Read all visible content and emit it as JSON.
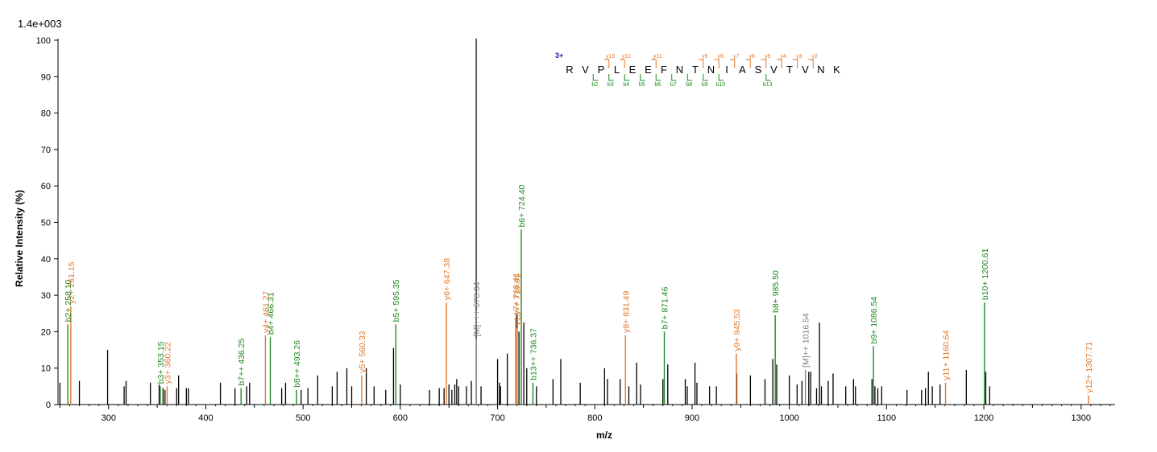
{
  "scale_label": "1.4e+003",
  "peptide": {
    "charge": "3+",
    "sequence": [
      "R",
      "V",
      "P",
      "L",
      "E",
      "E",
      "F",
      "N",
      "T",
      "N",
      "I",
      "A",
      "S",
      "V",
      "T",
      "V",
      "N",
      "K"
    ],
    "y_ions": [
      {
        "label": "y15",
        "after": 3
      },
      {
        "label": "y12",
        "after": 4
      },
      {
        "label": "y11",
        "after": 6
      },
      {
        "label": "y9",
        "after": 9
      },
      {
        "label": "y8",
        "after": 10
      },
      {
        "label": "y7",
        "after": 11
      },
      {
        "label": "y6",
        "after": 12
      },
      {
        "label": "y5",
        "after": 13
      },
      {
        "label": "y4",
        "after": 14
      },
      {
        "label": "y3",
        "after": 15
      },
      {
        "label": "y2",
        "after": 16
      }
    ],
    "b_ions": [
      {
        "label": "b2",
        "after": 2
      },
      {
        "label": "b3",
        "after": 3
      },
      {
        "label": "b4",
        "after": 4
      },
      {
        "label": "b5",
        "after": 5
      },
      {
        "label": "b6",
        "after": 6
      },
      {
        "label": "b7",
        "after": 7
      },
      {
        "label": "b8",
        "after": 8
      },
      {
        "label": "b9",
        "after": 9
      },
      {
        "label": "b10",
        "after": 10
      },
      {
        "label": "b13",
        "after": 13
      }
    ]
  },
  "colors": {
    "b": "#1f8a1f",
    "y": "#e07a30",
    "m": "#808080",
    "other": "#000000"
  },
  "chart_data": {
    "type": "bar",
    "subtype": "mass-spectrum-sticks",
    "xlabel": "m/z",
    "ylabel": "Relative   Intensity (%)",
    "xlim": [
      248,
      1335
    ],
    "ylim": [
      0,
      100
    ],
    "xticks": [
      300,
      400,
      500,
      600,
      700,
      800,
      900,
      1000,
      1100,
      1200,
      1300
    ],
    "yticks": [
      0,
      10,
      20,
      30,
      40,
      50,
      60,
      70,
      80,
      90,
      100
    ],
    "grid": false,
    "annotated_peaks": [
      {
        "mz": 258.1,
        "rel": 22,
        "kind": "b",
        "label": "b2+ 258.10",
        "visible": "b2+ 2"
      },
      {
        "mz": 261.15,
        "rel": 27,
        "kind": "y",
        "label": "y2+ 261.15"
      },
      {
        "mz": 353.15,
        "rel": 5,
        "kind": "b",
        "label": "b3+ 353.15"
      },
      {
        "mz": 360.22,
        "rel": 5,
        "kind": "y",
        "label": "y3+ 360.22"
      },
      {
        "mz": 436.25,
        "rel": 4.5,
        "kind": "b",
        "label": "b7++ 436.25"
      },
      {
        "mz": 461.27,
        "rel": 19,
        "kind": "y",
        "label": "y4+ 461.27",
        "visible": "y4+ 461.27"
      },
      {
        "mz": 466.31,
        "rel": 18.5,
        "kind": "b",
        "label": "b4+ 466.31"
      },
      {
        "mz": 493.26,
        "rel": 4,
        "kind": "b",
        "label": "b8++ 493.26"
      },
      {
        "mz": 560.33,
        "rel": 8,
        "kind": "y",
        "label": "y5+ 560.33"
      },
      {
        "mz": 595.35,
        "rel": 22,
        "kind": "b",
        "label": "b5+ 595.35"
      },
      {
        "mz": 647.38,
        "rel": 28,
        "kind": "y",
        "label": "y6+ 647.38"
      },
      {
        "mz": 678.04,
        "rel": 18,
        "kind": "m",
        "label": "[M]+++ 678.04"
      },
      {
        "mz": 718.41,
        "rel": 24,
        "kind": "y",
        "label": "y7+ 718.41"
      },
      {
        "mz": 719.91,
        "rel": 21,
        "kind": "y",
        "label": "y13++ 719.91"
      },
      {
        "mz": 724.4,
        "rel": 48,
        "kind": "b",
        "label": "b6+ 724.40"
      },
      {
        "mz": 736.37,
        "rel": 6,
        "kind": "b",
        "label": "b13++ 736.37"
      },
      {
        "mz": 831.49,
        "rel": 19,
        "kind": "y",
        "label": "y8+ 831.49"
      },
      {
        "mz": 871.46,
        "rel": 20,
        "kind": "b",
        "label": "b7+ 871.46"
      },
      {
        "mz": 945.53,
        "rel": 14,
        "kind": "y",
        "label": "y9+ 945.53"
      },
      {
        "mz": 985.5,
        "rel": 24.5,
        "kind": "b",
        "label": "b8+ 985.50"
      },
      {
        "mz": 1016.54,
        "rel": 9.5,
        "kind": "m",
        "label": "[M]++ 1016.54"
      },
      {
        "mz": 1086.54,
        "rel": 16,
        "kind": "b",
        "label": "b9+ 1086.54"
      },
      {
        "mz": 1160.64,
        "rel": 6,
        "kind": "y",
        "label": "y11+ 1160.64"
      },
      {
        "mz": 1200.61,
        "rel": 28,
        "kind": "b",
        "label": "b10+ 1200.61"
      },
      {
        "mz": 1307.71,
        "rel": 2.5,
        "kind": "y",
        "label": "y12+ 1307.71"
      }
    ],
    "other_peaks": [
      [
        250,
        6
      ],
      [
        270,
        6.5
      ],
      [
        299,
        15
      ],
      [
        316,
        5
      ],
      [
        318,
        6.5
      ],
      [
        343,
        6
      ],
      [
        352,
        5.5
      ],
      [
        356,
        4.5
      ],
      [
        358,
        4
      ],
      [
        370,
        4.5
      ],
      [
        372,
        8
      ],
      [
        380,
        4.5
      ],
      [
        382,
        4.5
      ],
      [
        415,
        6
      ],
      [
        430,
        4.5
      ],
      [
        442,
        5
      ],
      [
        445,
        6
      ],
      [
        478,
        4.5
      ],
      [
        482,
        6
      ],
      [
        498,
        4
      ],
      [
        505,
        4.5
      ],
      [
        515,
        8
      ],
      [
        530,
        5
      ],
      [
        535,
        9
      ],
      [
        545,
        10
      ],
      [
        550,
        5
      ],
      [
        565,
        10
      ],
      [
        573,
        5
      ],
      [
        585,
        4
      ],
      [
        593,
        15.5
      ],
      [
        600,
        5.5
      ],
      [
        630,
        4
      ],
      [
        640,
        4.5
      ],
      [
        645,
        4.5
      ],
      [
        650,
        5.5
      ],
      [
        653,
        4
      ],
      [
        656,
        5.5
      ],
      [
        658,
        7
      ],
      [
        660,
        5
      ],
      [
        668,
        5
      ],
      [
        673,
        6.5
      ],
      [
        683,
        5
      ],
      [
        700,
        12.5
      ],
      [
        702,
        6
      ],
      [
        703,
        5
      ],
      [
        710,
        14
      ],
      [
        720,
        25
      ],
      [
        722,
        20
      ],
      [
        727,
        22.5
      ],
      [
        730,
        10
      ],
      [
        740,
        5
      ],
      [
        757,
        7
      ],
      [
        765,
        12.5
      ],
      [
        785,
        6
      ],
      [
        810,
        10
      ],
      [
        813,
        7
      ],
      [
        826,
        7
      ],
      [
        835,
        5
      ],
      [
        843,
        11.5
      ],
      [
        847,
        5.5
      ],
      [
        870,
        7
      ],
      [
        875,
        11
      ],
      [
        893,
        7
      ],
      [
        895,
        5
      ],
      [
        903,
        11.5
      ],
      [
        905,
        6
      ],
      [
        918,
        5
      ],
      [
        925,
        5
      ],
      [
        946,
        8.5
      ],
      [
        960,
        8
      ],
      [
        975,
        7
      ],
      [
        983,
        12.5
      ],
      [
        987,
        11
      ],
      [
        1000,
        8
      ],
      [
        1008,
        5.5
      ],
      [
        1013,
        6.5
      ],
      [
        1020,
        9
      ],
      [
        1022,
        9
      ],
      [
        1028,
        4.5
      ],
      [
        1031,
        22.5
      ],
      [
        1033,
        5
      ],
      [
        1040,
        6.5
      ],
      [
        1045,
        8.5
      ],
      [
        1058,
        5
      ],
      [
        1066,
        7
      ],
      [
        1068,
        5
      ],
      [
        1085,
        7
      ],
      [
        1088,
        5
      ],
      [
        1091,
        4.5
      ],
      [
        1095,
        5
      ],
      [
        1121,
        4
      ],
      [
        1136,
        4
      ],
      [
        1140,
        4.5
      ],
      [
        1143,
        9
      ],
      [
        1147,
        5
      ],
      [
        1155,
        5.5
      ],
      [
        1182,
        9.5
      ],
      [
        1202,
        9
      ],
      [
        1206,
        5
      ]
    ]
  }
}
